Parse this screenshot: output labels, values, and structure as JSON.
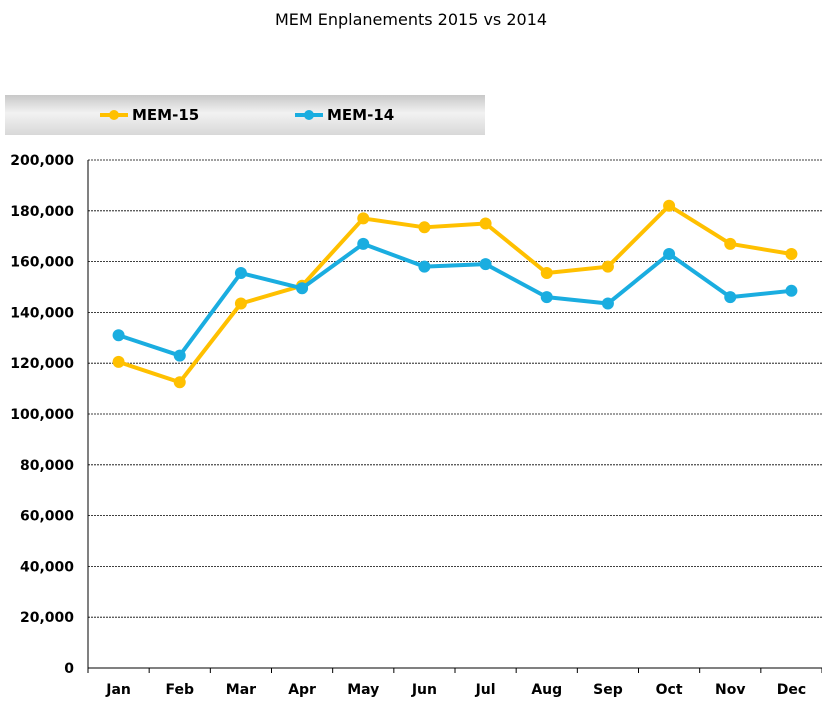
{
  "chart_data": {
    "type": "line",
    "title": "MEM Enplanements 2015 vs 2014",
    "xlabel": "",
    "ylabel": "",
    "categories": [
      "Jan",
      "Feb",
      "Mar",
      "Apr",
      "May",
      "Jun",
      "Jul",
      "Aug",
      "Sep",
      "Oct",
      "Nov",
      "Dec"
    ],
    "ylim": [
      0,
      200000
    ],
    "yticks": [
      0,
      20000,
      40000,
      60000,
      80000,
      100000,
      120000,
      140000,
      160000,
      180000,
      200000
    ],
    "ytick_labels": [
      "0",
      "20,000",
      "40,000",
      "60,000",
      "80,000",
      "100,000",
      "120,000",
      "140,000",
      "160,000",
      "180,000",
      "200,000"
    ],
    "grid": true,
    "legend_position": "top-left",
    "series": [
      {
        "name": "MEM-15",
        "color": "#ffc000",
        "values": [
          120500,
          112500,
          143500,
          150500,
          177000,
          173500,
          175000,
          155500,
          158000,
          182000,
          167000,
          163000
        ]
      },
      {
        "name": "MEM-14",
        "color": "#1aade0",
        "values": [
          131000,
          123000,
          155500,
          149500,
          167000,
          158000,
          159000,
          146000,
          143500,
          163000,
          146000,
          148500
        ]
      }
    ]
  }
}
